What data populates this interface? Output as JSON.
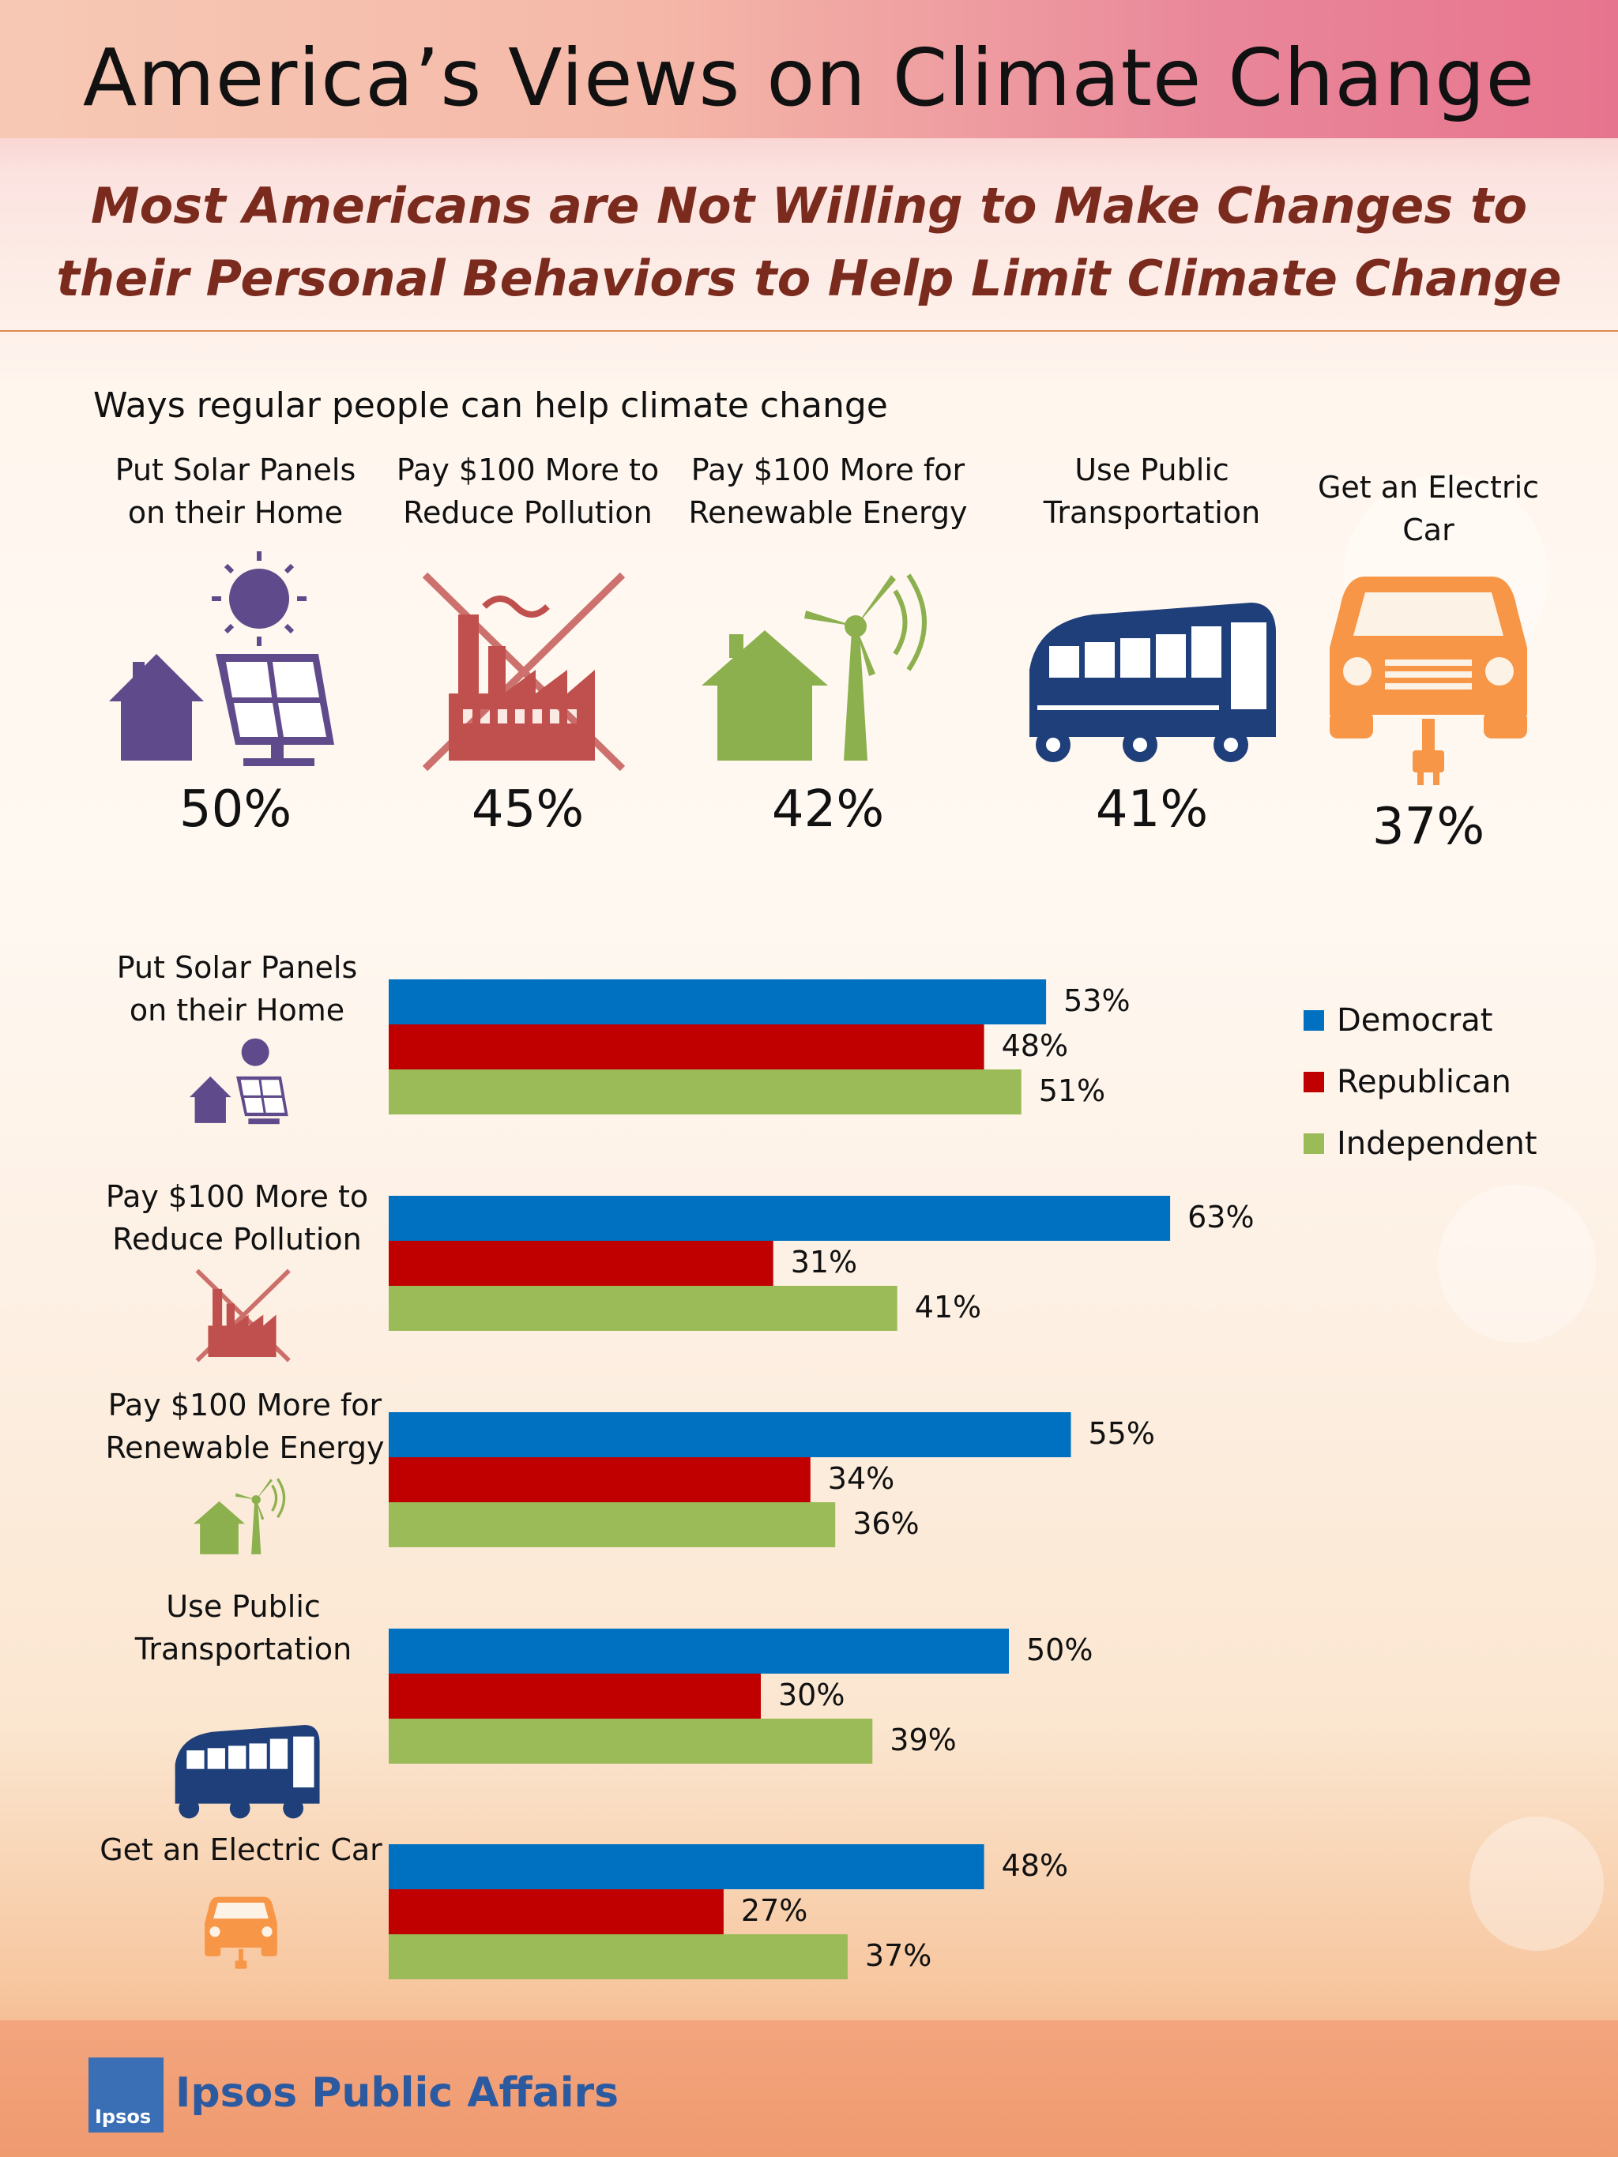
{
  "header": {
    "title": "America’s Views on Climate Change",
    "subtitle": "Most Americans are Not Willing to Make Changes to their Personal Behaviors to Help Limit Climate Change"
  },
  "section_label": "Ways regular people can help climate change",
  "overall": [
    {
      "label": "Put Solar Panels\non their Home",
      "value_text": "50%",
      "icon": "solar-house-icon",
      "color": "#5f4b8b"
    },
    {
      "label": "Pay $100 More to\nReduce Pollution",
      "value_text": "45%",
      "icon": "factory-crossed-icon",
      "color": "#c0504d"
    },
    {
      "label": "Pay $100 More for\nRenewable Energy",
      "value_text": "42%",
      "icon": "wind-house-icon",
      "color": "#8db04e"
    },
    {
      "label": "Use Public\nTransportation",
      "value_text": "41%",
      "icon": "bus-icon",
      "color": "#1f3f7a"
    },
    {
      "label": "Get an Electric\nCar",
      "value_text": "37%",
      "icon": "electric-car-icon",
      "color": "#f79646"
    }
  ],
  "legend": [
    "Democrat",
    "Republican",
    "Independent"
  ],
  "colors": {
    "democrat": "#0070c0",
    "republican": "#c00000",
    "independent": "#9bbb59"
  },
  "chart_data": {
    "type": "bar",
    "orientation": "horizontal",
    "categories": [
      "Put Solar Panels on their Home",
      "Pay $100 More to Reduce Pollution",
      "Pay $100 More for Renewable Energy",
      "Use Public Transportation",
      "Get an Electric Car"
    ],
    "category_labels": [
      "Put Solar Panels\non their Home",
      "Pay $100 More to\nReduce Pollution",
      "Pay $100 More for\nRenewable Energy",
      "Use Public\nTransportation",
      "Get an Electric Car"
    ],
    "series": [
      {
        "name": "Democrat",
        "values": [
          53,
          63,
          55,
          50,
          48
        ]
      },
      {
        "name": "Republican",
        "values": [
          48,
          31,
          34,
          30,
          27
        ]
      },
      {
        "name": "Independent",
        "values": [
          51,
          41,
          36,
          39,
          37
        ]
      }
    ],
    "value_suffix": "%",
    "xlim": [
      0,
      100
    ],
    "grid": false,
    "legend_position": "right"
  },
  "footer": {
    "logo_text": "Ipsos",
    "brand": "Ipsos Public Affairs"
  }
}
